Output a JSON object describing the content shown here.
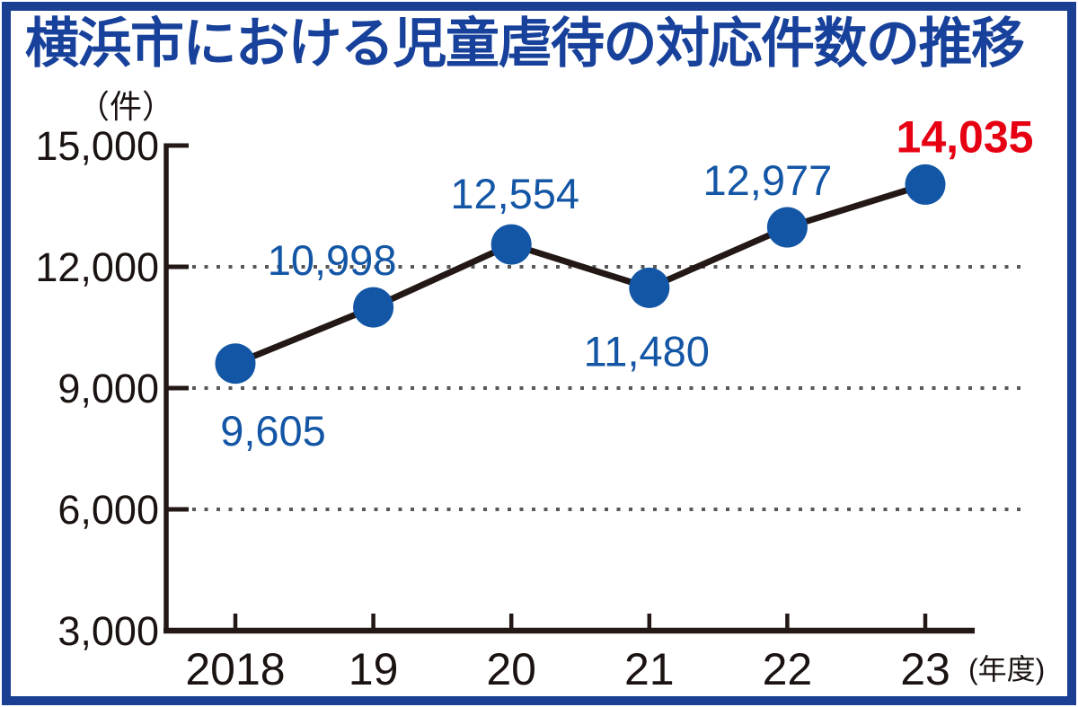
{
  "title": "横浜市における児童虐待の対応件数の推移",
  "chart_data": {
    "type": "line",
    "categories": [
      "2018",
      "19",
      "20",
      "21",
      "22",
      "23"
    ],
    "values": [
      9605,
      10998,
      12554,
      11480,
      12977,
      14035
    ],
    "value_labels": [
      "9,605",
      "10,998",
      "12,554",
      "11,480",
      "12,977",
      "14,035"
    ],
    "title": "横浜市における児童虐待の対応件数の推移",
    "ylabel": "（件）",
    "xlabel": "(年度)",
    "ylim": [
      3000,
      15000
    ],
    "yticks": [
      3000,
      6000,
      9000,
      12000,
      15000
    ],
    "ytick_labels": [
      "3,000",
      "6,000",
      "9,000",
      "12,000",
      "15,000"
    ],
    "gridline_values": [
      6000,
      9000,
      12000
    ],
    "grid_style": "dotted",
    "legend_position": "none",
    "highlight_last_point": true
  },
  "colors": {
    "frame_border": "#1a3f93",
    "title_text": "#17419a",
    "series_blue": "#1356a5",
    "highlight_red": "#e60012",
    "ink_black": "#231815",
    "grid_gray": "#595757"
  }
}
